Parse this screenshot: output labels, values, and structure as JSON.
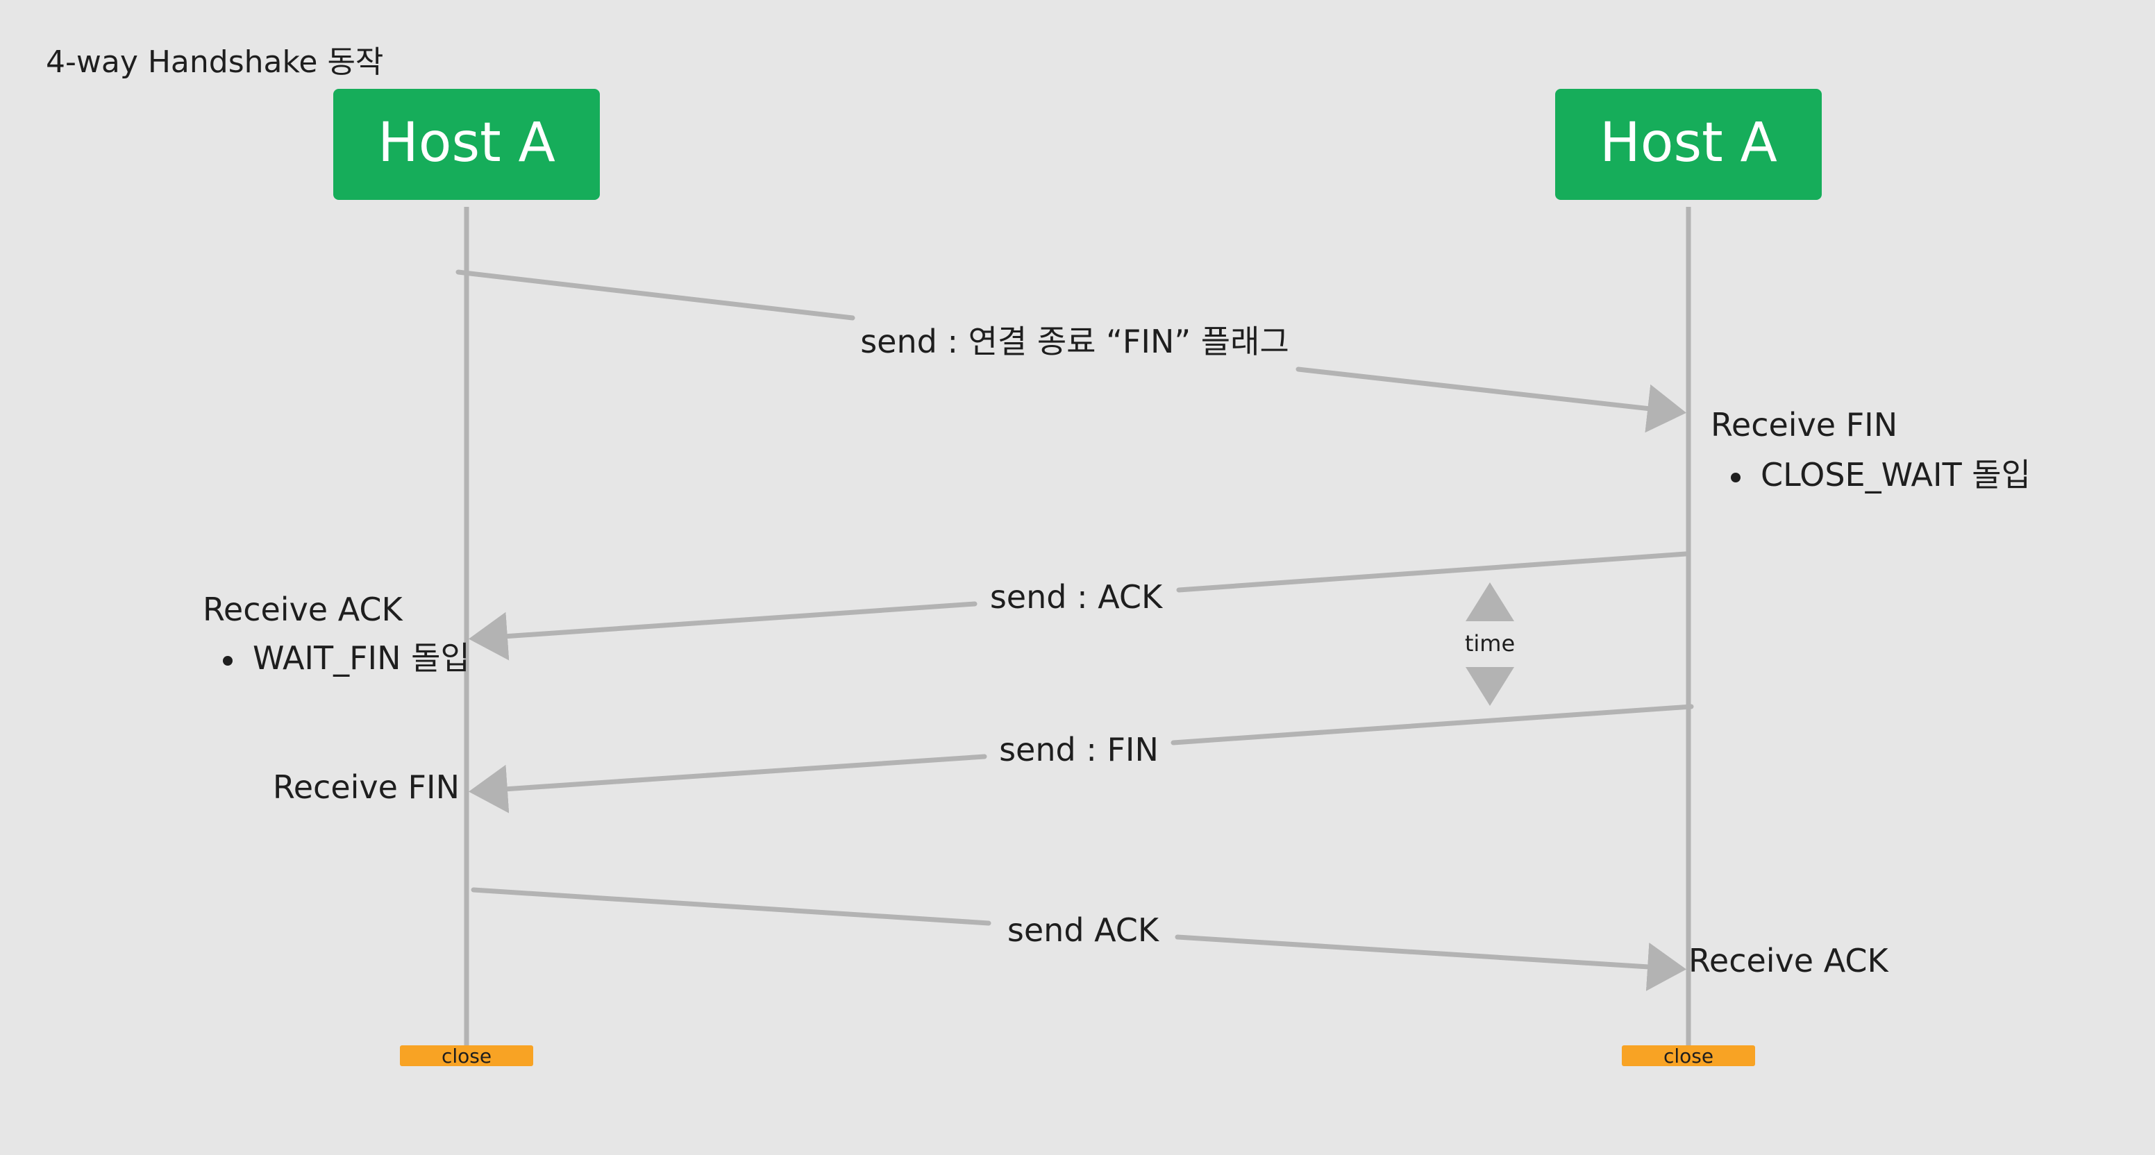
{
  "title": "4-way Handshake 동작",
  "hosts": {
    "left": {
      "label": "Host A"
    },
    "right": {
      "label": "Host A"
    }
  },
  "close_badges": {
    "left": "close",
    "right": "close"
  },
  "messages": {
    "fin_1": "send : 연결 종료 “FIN” 플래그",
    "ack_1": "send : ACK",
    "fin_2": "send : FIN",
    "ack_2": "send ACK"
  },
  "annotations": {
    "right_receive_fin": "Receive FIN",
    "right_receive_fin_bullet": "CLOSE_WAIT 돌입",
    "left_receive_ack": "Receive ACK",
    "left_receive_ack_bullet": "WAIT_FIN 돌입",
    "left_receive_fin": "Receive FIN",
    "right_receive_ack": "Receive ACK",
    "time": "time"
  },
  "colors": {
    "background": "#e6e6e6",
    "host_box": "#16ad5a",
    "lifeline": "#b3b3b3",
    "arrow": "#b3b3b3",
    "close_badge": "#f8a324",
    "text": "#1e1e1e"
  }
}
